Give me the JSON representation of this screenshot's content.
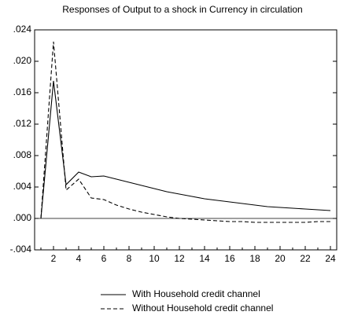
{
  "chart_data": {
    "type": "line",
    "title": "Responses of Output to a shock in Currency in circulation",
    "x": [
      1,
      2,
      3,
      4,
      5,
      6,
      7,
      8,
      9,
      10,
      11,
      12,
      13,
      14,
      15,
      16,
      17,
      18,
      19,
      20,
      21,
      22,
      23,
      24
    ],
    "series": [
      {
        "name": "With Household credit channel",
        "color": "#000000",
        "line_style": "solid",
        "values": [
          0,
          0.0175,
          0.0043,
          0.0059,
          0.0053,
          0.0054,
          0.005,
          0.0046,
          0.0042,
          0.0038,
          0.0034,
          0.0031,
          0.0028,
          0.0025,
          0.0023,
          0.0021,
          0.0019,
          0.0017,
          0.0015,
          0.0014,
          0.0013,
          0.0012,
          0.0011,
          0.001
        ]
      },
      {
        "name": "Without Household credit channel",
        "color": "#000000",
        "line_style": "dashed",
        "values": [
          0,
          0.0225,
          0.0036,
          0.005,
          0.0026,
          0.0024,
          0.0017,
          0.0012,
          0.0008,
          0.0005,
          0.0002,
          0,
          -0.0001,
          -0.0002,
          -0.0003,
          -0.0004,
          -0.0004,
          -0.0005,
          -0.0005,
          -0.0005,
          -0.0005,
          -0.0005,
          -0.0004,
          -0.0004
        ]
      }
    ],
    "xlim": [
      0.5,
      24.5
    ],
    "xticks": [
      2,
      4,
      6,
      8,
      10,
      12,
      14,
      16,
      18,
      20,
      22,
      24
    ],
    "ylim": [
      -0.004,
      0.024
    ],
    "yticks": [
      {
        "value": -0.004,
        "label": "-.004"
      },
      {
        "value": 0,
        "label": ".000"
      },
      {
        "value": 0.004,
        "label": ".004"
      },
      {
        "value": 0.008,
        "label": ".008"
      },
      {
        "value": 0.012,
        "label": ".012"
      },
      {
        "value": 0.016,
        "label": ".016"
      },
      {
        "value": 0.02,
        "label": ".020"
      },
      {
        "value": 0.024,
        "label": ".024"
      }
    ],
    "grid": false,
    "legend": "bottom"
  }
}
